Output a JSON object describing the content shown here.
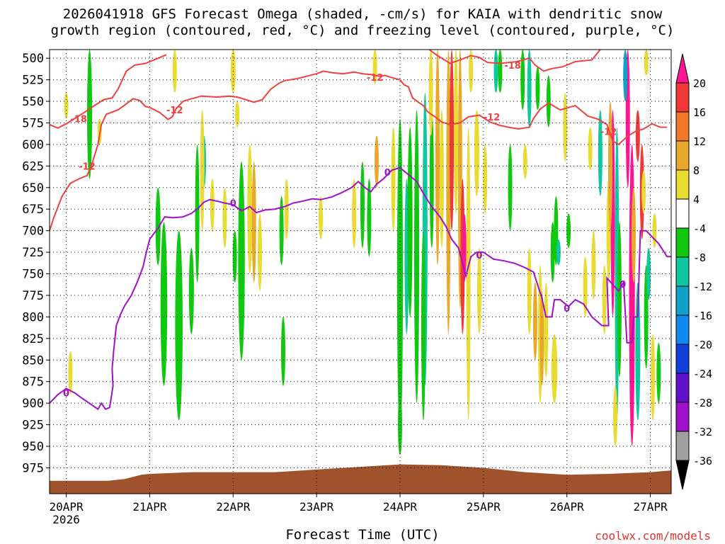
{
  "title": {
    "line1": "2026041918 GFS Forecast Omega (shaded, -cm/s) for KAIA with dendritic snow",
    "line2": "growth region (contoured, red, °C) and freezing level (contoured, purple, °C)"
  },
  "xlabel": "Forecast Time (UTC)",
  "credit": "coolwx.com/models",
  "chart_data": {
    "type": "heatmap",
    "x_ticks": [
      "20APR",
      "21APR",
      "22APR",
      "23APR",
      "24APR",
      "25APR",
      "26APR",
      "27APR"
    ],
    "x_year": "2026",
    "x_range_days": [
      19.8,
      27.25
    ],
    "y_ticks": [
      500,
      525,
      550,
      575,
      600,
      625,
      650,
      675,
      700,
      725,
      750,
      775,
      800,
      825,
      850,
      875,
      900,
      925,
      950,
      975
    ],
    "y_range": [
      490,
      1005
    ],
    "grid": true,
    "colorbar": {
      "labels": [
        "20",
        "16",
        "12",
        "8",
        "4",
        "-4",
        "-8",
        "-12",
        "-16",
        "-20",
        "-24",
        "-28",
        "-32",
        "-36"
      ],
      "bins": [
        {
          "range": ">20",
          "color": "#ff1493"
        },
        {
          "range": "16-20",
          "color": "#f03838"
        },
        {
          "range": "12-16",
          "color": "#f07828"
        },
        {
          "range": "8-12",
          "color": "#e8a82c"
        },
        {
          "range": "4-8",
          "color": "#e8dc32"
        },
        {
          "range": "-4-4",
          "color": "#ffffff"
        },
        {
          "range": "-8--4",
          "color": "#10c810"
        },
        {
          "range": "-12--8",
          "color": "#10c8a0"
        },
        {
          "range": "-16--12",
          "color": "#10a0c8"
        },
        {
          "range": "-20--16",
          "color": "#1088f0"
        },
        {
          "range": "-24--20",
          "color": "#1040d8"
        },
        {
          "range": "-28--24",
          "color": "#6010c8"
        },
        {
          "range": "-32--28",
          "color": "#a010c8"
        },
        {
          "range": "-36--32",
          "color": "#a0a0a0"
        },
        {
          "range": "<-36",
          "color": "#000000"
        }
      ]
    },
    "red_contours": [
      {
        "label": "-18",
        "label_at": {
          "day": 20.15,
          "hPa": 570
        },
        "points": [
          [
            19.8,
            577
          ],
          [
            19.9,
            581
          ],
          [
            20.0,
            576
          ],
          [
            20.1,
            570
          ],
          [
            20.2,
            564
          ],
          [
            20.32,
            556
          ],
          [
            20.45,
            548
          ],
          [
            20.55,
            546
          ],
          [
            20.62,
            536
          ],
          [
            20.72,
            515
          ],
          [
            20.82,
            508
          ],
          [
            20.95,
            506
          ],
          [
            21.1,
            500
          ],
          [
            21.2,
            496
          ]
        ]
      },
      {
        "label": "-12",
        "label_at": {
          "day": 20.25,
          "hPa": 625
        },
        "points": [
          [
            19.8,
            700
          ],
          [
            19.85,
            685
          ],
          [
            19.95,
            660
          ],
          [
            20.05,
            645
          ],
          [
            20.15,
            640
          ],
          [
            20.25,
            636
          ],
          [
            20.3,
            625
          ],
          [
            20.38,
            600
          ],
          [
            20.42,
            577
          ],
          [
            20.48,
            565
          ],
          [
            20.62,
            560
          ],
          [
            20.72,
            553
          ],
          [
            20.8,
            547
          ],
          [
            20.88,
            549
          ],
          [
            20.95,
            556
          ],
          [
            21.0,
            557
          ],
          [
            21.12,
            563
          ],
          [
            21.22,
            571
          ],
          [
            21.27,
            568
          ],
          [
            21.32,
            558
          ],
          [
            21.4,
            550
          ],
          [
            21.5,
            547
          ],
          [
            21.62,
            544
          ],
          [
            21.8,
            545
          ],
          [
            21.95,
            544
          ],
          [
            22.05,
            545
          ],
          [
            22.12,
            547
          ],
          [
            22.25,
            551
          ],
          [
            22.35,
            548
          ],
          [
            22.45,
            536
          ],
          [
            22.55,
            529
          ],
          [
            22.62,
            526
          ],
          [
            22.75,
            524
          ],
          [
            22.88,
            521
          ],
          [
            23.0,
            518
          ],
          [
            23.08,
            515
          ],
          [
            23.2,
            517
          ],
          [
            23.32,
            518
          ],
          [
            23.45,
            516
          ],
          [
            23.55,
            518
          ],
          [
            23.65,
            519
          ],
          [
            23.75,
            521
          ],
          [
            23.82,
            520
          ],
          [
            23.92,
            523
          ],
          [
            24.0,
            525
          ],
          [
            24.05,
            531
          ],
          [
            24.1,
            533
          ],
          [
            24.15,
            546
          ],
          [
            24.22,
            551
          ],
          [
            24.28,
            555
          ],
          [
            24.33,
            562
          ],
          [
            24.42,
            568
          ],
          [
            24.5,
            574
          ],
          [
            24.6,
            577
          ],
          [
            24.72,
            575
          ],
          [
            24.82,
            568
          ],
          [
            24.95,
            566
          ],
          [
            25.08,
            574
          ],
          [
            25.2,
            578
          ],
          [
            25.3,
            580
          ],
          [
            25.42,
            582
          ],
          [
            25.55,
            580
          ],
          [
            25.6,
            570
          ],
          [
            25.68,
            559
          ],
          [
            25.78,
            552
          ],
          [
            25.92,
            560
          ],
          [
            26.1,
            555
          ],
          [
            26.25,
            567
          ],
          [
            26.38,
            571
          ],
          [
            26.48,
            577
          ],
          [
            26.55,
            596
          ],
          [
            26.62,
            600
          ],
          [
            26.72,
            591
          ],
          [
            26.82,
            585
          ],
          [
            26.92,
            582
          ],
          [
            27.02,
            576
          ],
          [
            27.12,
            580
          ],
          [
            27.2,
            580
          ]
        ]
      },
      {
        "label": "-12",
        "label_at": {
          "day": 21.3,
          "hPa": 560
        },
        "points": []
      },
      {
        "label": "-12",
        "label_at": {
          "day": 23.7,
          "hPa": 522
        },
        "points": []
      },
      {
        "label": "-12",
        "label_at": {
          "day": 25.1,
          "hPa": 568
        },
        "points": []
      },
      {
        "label": "-18",
        "label_at": {
          "day": 25.35,
          "hPa": 508
        },
        "points": [
          [
            24.35,
            490
          ],
          [
            24.45,
            497
          ],
          [
            24.6,
            506
          ],
          [
            24.72,
            502
          ],
          [
            24.85,
            497
          ],
          [
            24.95,
            499
          ],
          [
            25.05,
            505
          ],
          [
            25.2,
            506
          ],
          [
            25.4,
            504
          ],
          [
            25.55,
            500
          ],
          [
            25.62,
            508
          ],
          [
            25.72,
            515
          ],
          [
            25.82,
            512
          ],
          [
            25.95,
            510
          ],
          [
            26.1,
            504
          ],
          [
            26.3,
            502
          ],
          [
            26.4,
            490
          ]
        ]
      },
      {
        "label": "-12",
        "label_at": {
          "day": 26.5,
          "hPa": 585
        },
        "points": []
      }
    ],
    "purple_contours": [
      {
        "label": "0",
        "label_at": {
          "day": 20.0,
          "hPa": 888
        },
        "points": [
          [
            19.8,
            900
          ],
          [
            19.9,
            890
          ],
          [
            20.0,
            883
          ],
          [
            20.1,
            888
          ],
          [
            20.2,
            895
          ],
          [
            20.32,
            903
          ],
          [
            20.38,
            907
          ],
          [
            20.42,
            900
          ],
          [
            20.47,
            907
          ],
          [
            20.52,
            905
          ],
          [
            20.56,
            880
          ],
          [
            20.55,
            860
          ],
          [
            20.57,
            838
          ],
          [
            20.6,
            810
          ],
          [
            20.65,
            797
          ],
          [
            20.7,
            787
          ],
          [
            20.78,
            775
          ],
          [
            20.85,
            760
          ],
          [
            20.92,
            742
          ],
          [
            20.96,
            725
          ],
          [
            21.0,
            710
          ],
          [
            21.1,
            697
          ],
          [
            21.18,
            684
          ],
          [
            21.28,
            685
          ],
          [
            21.4,
            684
          ],
          [
            21.5,
            680
          ],
          [
            21.58,
            674
          ],
          [
            21.65,
            667
          ],
          [
            21.72,
            664
          ],
          [
            21.82,
            666
          ],
          [
            21.9,
            668
          ],
          [
            22.0,
            670
          ],
          [
            22.1,
            677
          ],
          [
            22.2,
            672
          ],
          [
            22.28,
            679
          ],
          [
            22.38,
            676
          ],
          [
            22.5,
            675
          ],
          [
            22.62,
            672
          ],
          [
            22.72,
            668
          ],
          [
            22.82,
            666
          ],
          [
            22.95,
            663
          ],
          [
            23.05,
            664
          ],
          [
            23.18,
            661
          ],
          [
            23.3,
            656
          ],
          [
            23.42,
            650
          ],
          [
            23.5,
            643
          ],
          [
            23.58,
            650
          ],
          [
            23.65,
            655
          ],
          [
            23.72,
            646
          ],
          [
            23.8,
            640
          ],
          [
            23.9,
            630
          ],
          [
            24.0,
            627
          ],
          [
            24.1,
            635
          ],
          [
            24.2,
            643
          ],
          [
            24.3,
            660
          ],
          [
            24.38,
            672
          ],
          [
            24.48,
            684
          ],
          [
            24.55,
            695
          ],
          [
            24.62,
            710
          ],
          [
            24.7,
            720
          ],
          [
            24.75,
            738
          ],
          [
            24.79,
            752
          ],
          [
            24.85,
            730
          ],
          [
            24.92,
            725
          ],
          [
            25.0,
            725
          ],
          [
            25.12,
            733
          ],
          [
            25.25,
            735
          ],
          [
            25.38,
            738
          ],
          [
            25.5,
            743
          ],
          [
            25.6,
            748
          ],
          [
            25.7,
            778
          ],
          [
            25.75,
            800
          ],
          [
            25.82,
            800
          ],
          [
            25.85,
            780
          ],
          [
            25.92,
            780
          ],
          [
            26.02,
            788
          ],
          [
            26.1,
            780
          ],
          [
            26.2,
            785
          ],
          [
            26.3,
            800
          ],
          [
            26.42,
            810
          ],
          [
            26.5,
            810
          ],
          [
            26.48,
            755
          ],
          [
            26.62,
            770
          ],
          [
            26.68,
            760
          ],
          [
            26.72,
            830
          ],
          [
            26.78,
            830
          ],
          [
            26.8,
            800
          ],
          [
            26.85,
            800
          ],
          [
            26.88,
            700
          ],
          [
            26.95,
            700
          ],
          [
            27.0,
            705
          ],
          [
            27.1,
            715
          ],
          [
            27.2,
            730
          ],
          [
            27.25,
            730
          ]
        ]
      },
      {
        "label": "0",
        "label_at": {
          "day": 22.0,
          "hPa": 668
        },
        "points": []
      },
      {
        "label": "0",
        "label_at": {
          "day": 23.85,
          "hPa": 632
        },
        "points": []
      },
      {
        "label": "0",
        "label_at": {
          "day": 24.95,
          "hPa": 728
        },
        "points": []
      },
      {
        "label": "0",
        "label_at": {
          "day": 26.0,
          "hPa": 790
        },
        "points": []
      },
      {
        "label": "0",
        "label_at": {
          "day": 26.67,
          "hPa": 762
        },
        "points": []
      }
    ],
    "terrain_color": "#a0522d",
    "terrain_hPa": [
      [
        19.8,
        990
      ],
      [
        20.5,
        990
      ],
      [
        20.7,
        988
      ],
      [
        20.9,
        983
      ],
      [
        21.0,
        982
      ],
      [
        21.5,
        980
      ],
      [
        22.0,
        980
      ],
      [
        22.5,
        980
      ],
      [
        23.0,
        977
      ],
      [
        23.5,
        974
      ],
      [
        24.0,
        971
      ],
      [
        24.5,
        972
      ],
      [
        25.0,
        975
      ],
      [
        25.5,
        980
      ],
      [
        26.0,
        983
      ],
      [
        26.5,
        982
      ],
      [
        27.0,
        980
      ],
      [
        27.25,
        978
      ]
    ]
  }
}
